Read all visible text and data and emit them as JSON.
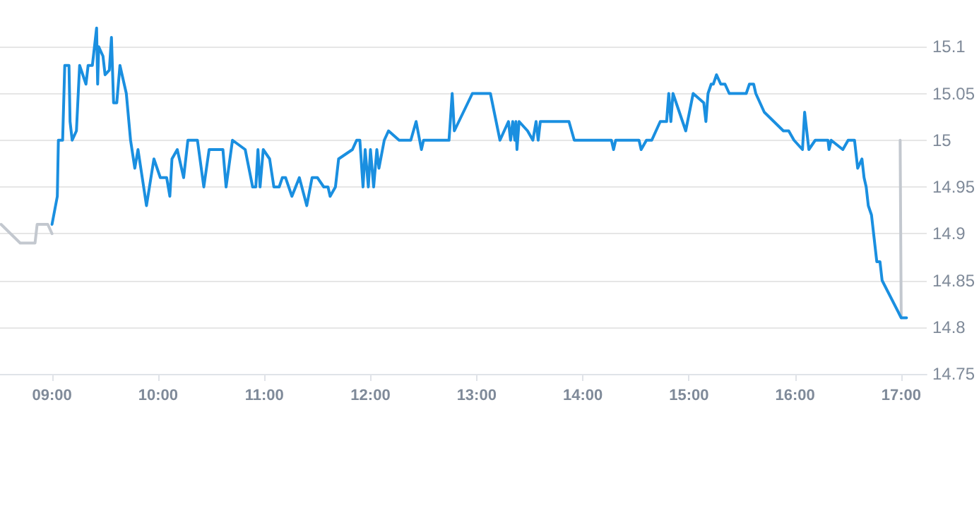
{
  "chart_data": {
    "type": "line",
    "xlim": [
      8.51,
      17.24
    ],
    "ylim": [
      14.75,
      15.15
    ],
    "xticks": [
      {
        "value": 9,
        "label": "09:00"
      },
      {
        "value": 10,
        "label": "10:00"
      },
      {
        "value": 11,
        "label": "11:00"
      },
      {
        "value": 12,
        "label": "12:00"
      },
      {
        "value": 13,
        "label": "13:00"
      },
      {
        "value": 14,
        "label": "14:00"
      },
      {
        "value": 15,
        "label": "15:00"
      },
      {
        "value": 16,
        "label": "16:00"
      },
      {
        "value": 17,
        "label": "17:00"
      }
    ],
    "yticks": [
      14.75,
      14.8,
      14.85,
      14.9,
      14.95,
      15,
      15.05,
      15.1
    ],
    "grid": "y",
    "marker": "none",
    "series": [
      {
        "color": "#c3c8cf",
        "x": [
          8.52,
          8.7,
          8.84,
          8.86,
          8.96,
          9.0,
          16.85,
          16.99,
          17.0
        ],
        "values": [
          14.91,
          14.89,
          14.89,
          14.91,
          14.91,
          14.9,
          null,
          15.0,
          14.81
        ]
      },
      {
        "color": "#1a8fe0",
        "x": [
          9.0,
          9.05,
          9.06,
          9.1,
          9.12,
          9.16,
          9.17,
          9.19,
          9.23,
          9.26,
          9.32,
          9.34,
          9.38,
          9.42,
          9.43,
          9.44,
          9.48,
          9.5,
          9.54,
          9.56,
          9.58,
          9.61,
          9.64,
          9.7,
          9.74,
          9.78,
          9.81,
          9.89,
          9.96,
          10.02,
          10.08,
          10.11,
          10.13,
          10.18,
          10.24,
          10.28,
          10.37,
          10.43,
          10.48,
          10.61,
          10.64,
          10.7,
          10.82,
          10.89,
          10.92,
          10.94,
          10.96,
          10.99,
          11.05,
          11.09,
          11.14,
          11.17,
          11.2,
          11.26,
          11.33,
          11.4,
          11.45,
          11.5,
          11.56,
          11.6,
          11.62,
          11.67,
          11.7,
          11.83,
          11.87,
          11.9,
          11.93,
          11.95,
          11.98,
          12.0,
          12.03,
          12.06,
          12.08,
          12.13,
          12.17,
          12.27,
          12.38,
          12.43,
          12.48,
          12.5,
          12.74,
          12.77,
          12.79,
          12.96,
          13.13,
          13.22,
          13.3,
          13.32,
          13.34,
          13.36,
          13.37,
          13.38,
          13.4,
          13.48,
          13.53,
          13.56,
          13.58,
          13.6,
          13.87,
          13.92,
          14.27,
          14.29,
          14.31,
          14.53,
          14.55,
          14.6,
          14.65,
          14.73,
          14.79,
          14.81,
          14.83,
          14.85,
          14.97,
          15.04,
          15.14,
          15.16,
          15.18,
          15.21,
          15.23,
          15.26,
          15.3,
          15.34,
          15.38,
          15.54,
          15.57,
          15.61,
          15.63,
          15.71,
          15.8,
          15.89,
          15.94,
          15.99,
          16.07,
          16.09,
          16.13,
          16.19,
          16.31,
          16.32,
          16.34,
          16.45,
          16.5,
          16.56,
          16.59,
          16.63,
          16.65,
          16.67,
          16.69,
          16.72,
          16.77,
          16.8,
          16.82,
          17.0,
          17.05
        ],
        "values": [
          14.91,
          14.94,
          15.0,
          15.0,
          15.08,
          15.08,
          15.02,
          15.0,
          15.01,
          15.08,
          15.06,
          15.08,
          15.08,
          15.12,
          15.06,
          15.1,
          15.09,
          15.07,
          15.075,
          15.11,
          15.04,
          15.04,
          15.08,
          15.05,
          15.0,
          14.97,
          14.99,
          14.93,
          14.98,
          14.96,
          14.96,
          14.94,
          14.98,
          14.99,
          14.96,
          15.0,
          15.0,
          14.95,
          14.99,
          14.99,
          14.95,
          15.0,
          14.99,
          14.95,
          14.95,
          14.99,
          14.95,
          14.99,
          14.98,
          14.95,
          14.95,
          14.96,
          14.96,
          14.94,
          14.96,
          14.93,
          14.96,
          14.96,
          14.95,
          14.95,
          14.94,
          14.95,
          14.98,
          14.99,
          15.0,
          15.0,
          14.95,
          14.99,
          14.95,
          14.99,
          14.95,
          14.99,
          14.97,
          15.0,
          15.01,
          15.0,
          15.0,
          15.02,
          14.99,
          15.0,
          15.0,
          15.05,
          15.01,
          15.05,
          15.05,
          15.0,
          15.02,
          15.0,
          15.02,
          15.0,
          15.02,
          14.99,
          15.02,
          15.01,
          15.0,
          15.02,
          15.0,
          15.02,
          15.02,
          15.0,
          15.0,
          14.99,
          15.0,
          15.0,
          14.99,
          15.0,
          15.0,
          15.02,
          15.02,
          15.05,
          15.02,
          15.05,
          15.01,
          15.05,
          15.04,
          15.02,
          15.05,
          15.06,
          15.06,
          15.07,
          15.06,
          15.06,
          15.05,
          15.05,
          15.06,
          15.06,
          15.05,
          15.03,
          15.02,
          15.01,
          15.01,
          15.0,
          14.99,
          15.03,
          14.99,
          15.0,
          15.0,
          14.99,
          15.0,
          14.99,
          15.0,
          15.0,
          14.97,
          14.98,
          14.96,
          14.95,
          14.93,
          14.92,
          14.87,
          14.87,
          14.85,
          14.81,
          14.81
        ]
      }
    ]
  }
}
